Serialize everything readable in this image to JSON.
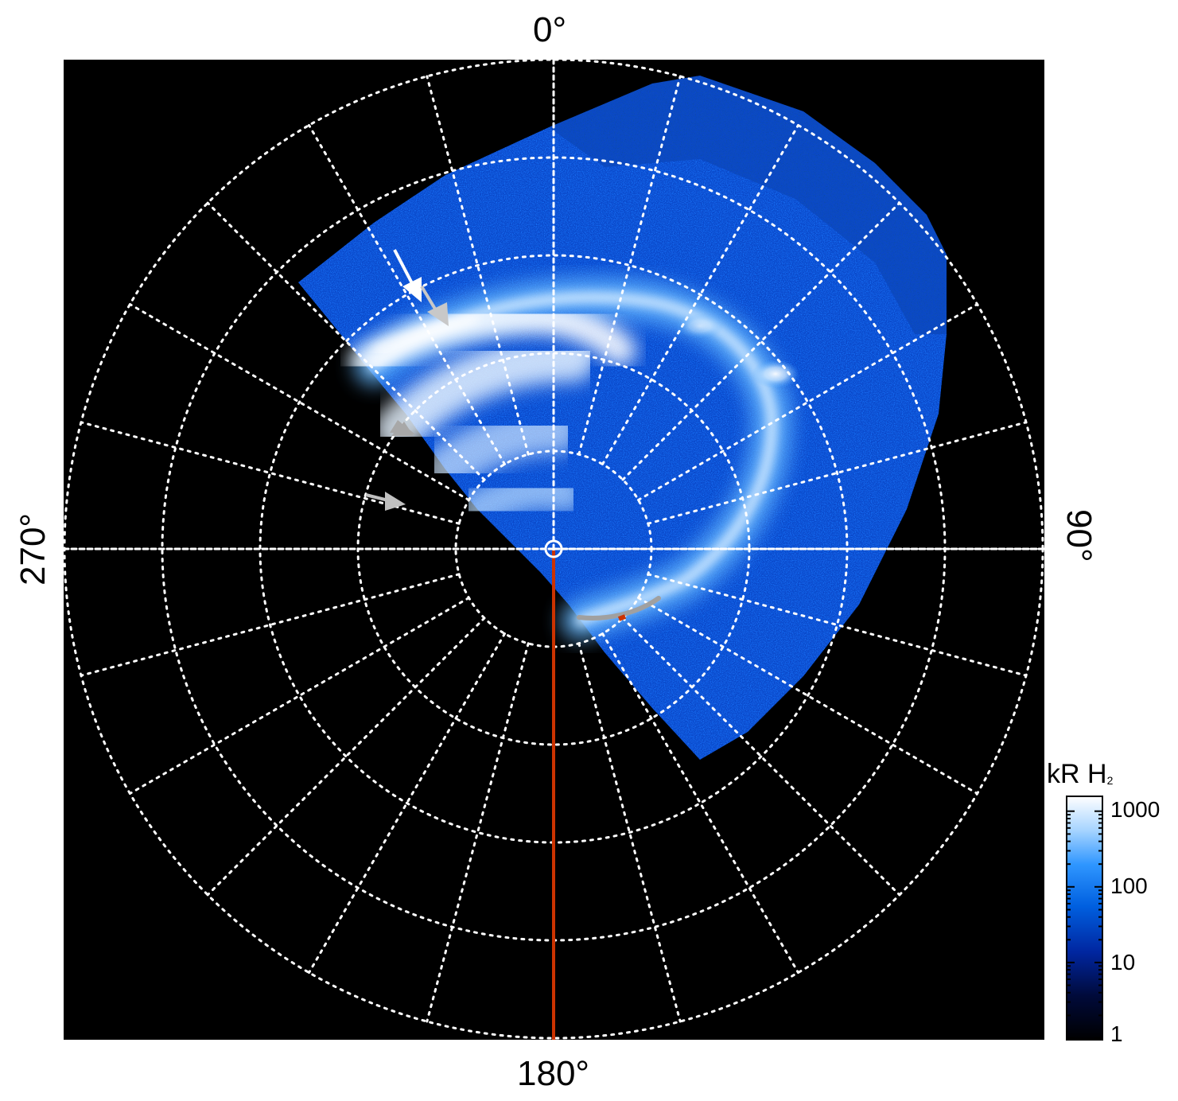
{
  "plot": {
    "background": "#000000",
    "grid_color": "#ffffff",
    "grid_style": "dotted",
    "rings": 5,
    "meridian_step_deg": 15,
    "azimuth_labels": {
      "top": "0°",
      "right": "90°",
      "bottom": "180°",
      "left": "270°"
    },
    "highlight_meridian_color": "#cc3300",
    "track_color": "#a0a0a0"
  },
  "colorbar": {
    "title": "kR H",
    "title_subscript": "2",
    "scale": "log",
    "range": [
      1,
      1500
    ],
    "ticks": [
      "1000",
      "100",
      "10",
      "1"
    ],
    "colors": [
      "#000000",
      "#001a66",
      "#0050d8",
      "#39a0ff",
      "#bde0ff",
      "#ffffff"
    ]
  },
  "arrows": [
    {
      "name": "white-arrow",
      "color": "#ffffff"
    },
    {
      "name": "grey-arrow-1",
      "color": "#c8c8c8"
    },
    {
      "name": "grey-arrow-2",
      "color": "#a8a8a8"
    },
    {
      "name": "grey-arrow-3",
      "color": "#c0c0c0"
    }
  ]
}
